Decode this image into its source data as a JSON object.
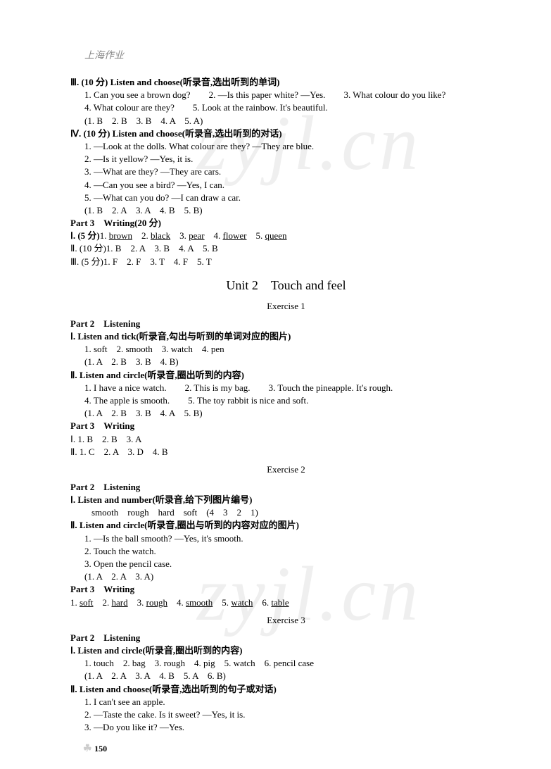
{
  "header": {
    "logo": "上海作业"
  },
  "section1": {
    "title": "Ⅲ. (10 分) Listen and choose(听录音,选出听到的单词)",
    "q1": "1. Can you see a brown dog?",
    "q2": "2. —Is this paper white? —Yes.",
    "q3": "3. What colour do you like?",
    "q4": "4. What colour are they?",
    "q5": "5. Look at the rainbow. It's beautiful.",
    "answers": "(1. B　2. B　3. B　4. A　5. A)"
  },
  "section2": {
    "title": "Ⅳ. (10 分) Listen and choose(听录音,选出听到的对话)",
    "q1": "1. —Look at the dolls. What colour are they? —They are blue.",
    "q2": "2. —Is it yellow? —Yes, it is.",
    "q3": "3. —What are they? —They are cars.",
    "q4": "4. —Can you see a bird? —Yes, I can.",
    "q5": "5. —What can you do? —I can draw a car.",
    "answers": "(1. B　2. A　3. A　4. B　5. B)"
  },
  "part3_header": "Part 3　Writing(20 分)",
  "part3": {
    "line1": {
      "prefix": "Ⅰ. (5 分)",
      "a1_num": "1. ",
      "a1": "brown",
      "a2_num": "　2. ",
      "a2": "black",
      "a3_num": "　3. ",
      "a3": "pear",
      "a4_num": "　4. ",
      "a4": "flower",
      "a5_num": "　5. ",
      "a5": "queen"
    },
    "line2": "Ⅱ. (10 分)1. B　2. A　3. B　4. A　5. B",
    "line3": "Ⅲ. (5 分)1. F　2. F　3. T　4. F　5. T"
  },
  "unit2": {
    "title": "Unit 2　Touch and feel"
  },
  "ex1": {
    "title": "Exercise 1",
    "part2": "Part 2　Listening",
    "sec1_title": "Ⅰ. Listen and tick(听录音,勾出与听到的单词对应的图片)",
    "sec1_line1": "1. soft　2. smooth　3. watch　4. pen",
    "sec1_ans": "(1. A　2. B　3. B　4. B)",
    "sec2_title": "Ⅱ. Listen and circle(听录音,圈出听到的内容)",
    "sec2_q1": "1. I have a nice watch.",
    "sec2_q2": "2. This is my bag.",
    "sec2_q3": "3. Touch the pineapple. It's rough.",
    "sec2_q4": "4. The apple is smooth.",
    "sec2_q5": "5. The toy rabbit is nice and soft.",
    "sec2_ans": "(1. A　2. B　3. B　4. A　5. B)",
    "part3": "Part 3　Writing",
    "p3_line1": "Ⅰ. 1. B　2. B　3. A",
    "p3_line2": "Ⅱ. 1. C　2. A　3. D　4. B"
  },
  "ex2": {
    "title": "Exercise 2",
    "part2": "Part 2　Listening",
    "sec1_title": "Ⅰ. Listen and number(听录音,给下列图片编号)",
    "sec1_line1": "smooth　rough　hard　soft　(4　3　2　1)",
    "sec2_title": "Ⅱ. Listen and circle(听录音,圈出与听到的内容对应的图片)",
    "sec2_q1": "1. —Is the ball smooth? —Yes, it's smooth.",
    "sec2_q2": "2. Touch the watch.",
    "sec2_q3": "3. Open the pencil case.",
    "sec2_ans": "(1. A　2. A　3. A)",
    "part3": "Part 3　Writing",
    "p3": {
      "a1_num": "1. ",
      "a1": "soft",
      "a2_num": "　2. ",
      "a2": "hard",
      "a3_num": "　3. ",
      "a3": "rough",
      "a4_num": "　4. ",
      "a4": "smooth",
      "a5_num": "　5. ",
      "a5": "watch",
      "a6_num": "　6. ",
      "a6": "table"
    }
  },
  "ex3": {
    "title": "Exercise 3",
    "part2": "Part 2　Listening",
    "sec1_title": "Ⅰ. Listen and circle(听录音,圈出听到的内容)",
    "sec1_line1": "1. touch　2. bag　3. rough　4. pig　5. watch　6. pencil case",
    "sec1_ans": "(1. A　2. A　3. A　4. B　5. A　6. B)",
    "sec2_title": "Ⅱ. Listen and choose(听录音,选出听到的句子或对话)",
    "sec2_q1": "1. I can't see an apple.",
    "sec2_q2": "2. —Taste the cake. Is it sweet? —Yes, it is.",
    "sec2_q3": "3. —Do you like it? —Yes."
  },
  "page_number": "150",
  "watermark": "zyjl.cn"
}
